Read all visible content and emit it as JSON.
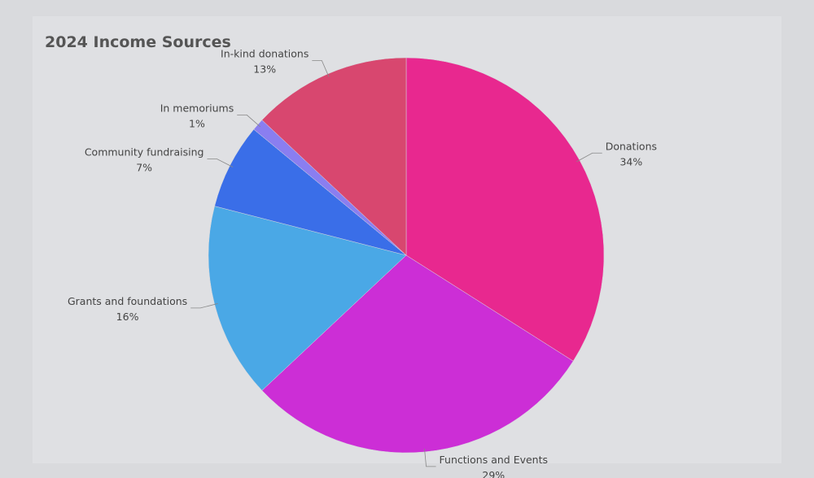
{
  "chart_data": {
    "type": "pie",
    "title": "2024 Income Sources",
    "categories": [
      "Donations",
      "Functions and Events",
      "Grants and foundations",
      "Community fundraising",
      "In memoriums",
      "In-kind donations"
    ],
    "values": [
      34,
      29,
      16,
      7,
      1,
      13
    ],
    "value_labels": [
      "34%",
      "29%",
      "16%",
      "7%",
      "1%",
      "13%"
    ],
    "colors": [
      "#e8288f",
      "#cc2ed6",
      "#4aa8e6",
      "#3a6ee8",
      "#8a7ef0",
      "#d8476f"
    ]
  }
}
